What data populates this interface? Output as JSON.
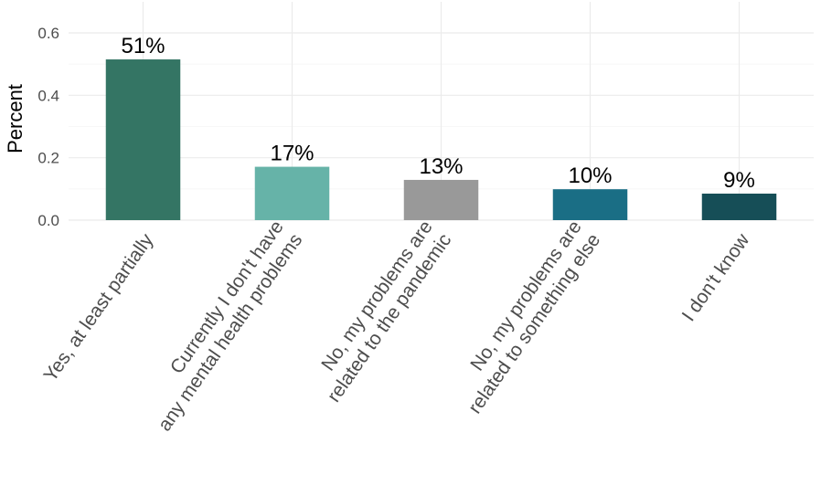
{
  "chart_data": {
    "type": "bar",
    "ylabel": "Percent",
    "xlabel": "",
    "ylim": [
      0,
      0.6
    ],
    "yticks": [
      0.0,
      0.2,
      0.4,
      0.6
    ],
    "ytick_labels": [
      "0.0",
      "0.2",
      "0.4",
      "0.6"
    ],
    "grid": true,
    "categories": [
      [
        "Yes, at least partially"
      ],
      [
        "Currently I don't have",
        "any mental health problems"
      ],
      [
        "No, my problems are",
        "related to the pandemic"
      ],
      [
        "No, my problems are",
        "related to something else"
      ],
      [
        "I don't know"
      ]
    ],
    "values": [
      0.515,
      0.171,
      0.129,
      0.099,
      0.085
    ],
    "data_labels": [
      "51%",
      "17%",
      "13%",
      "10%",
      "9%"
    ],
    "colors": [
      "#347564",
      "#66b3a8",
      "#999999",
      "#1a6e85",
      "#164e57"
    ]
  }
}
